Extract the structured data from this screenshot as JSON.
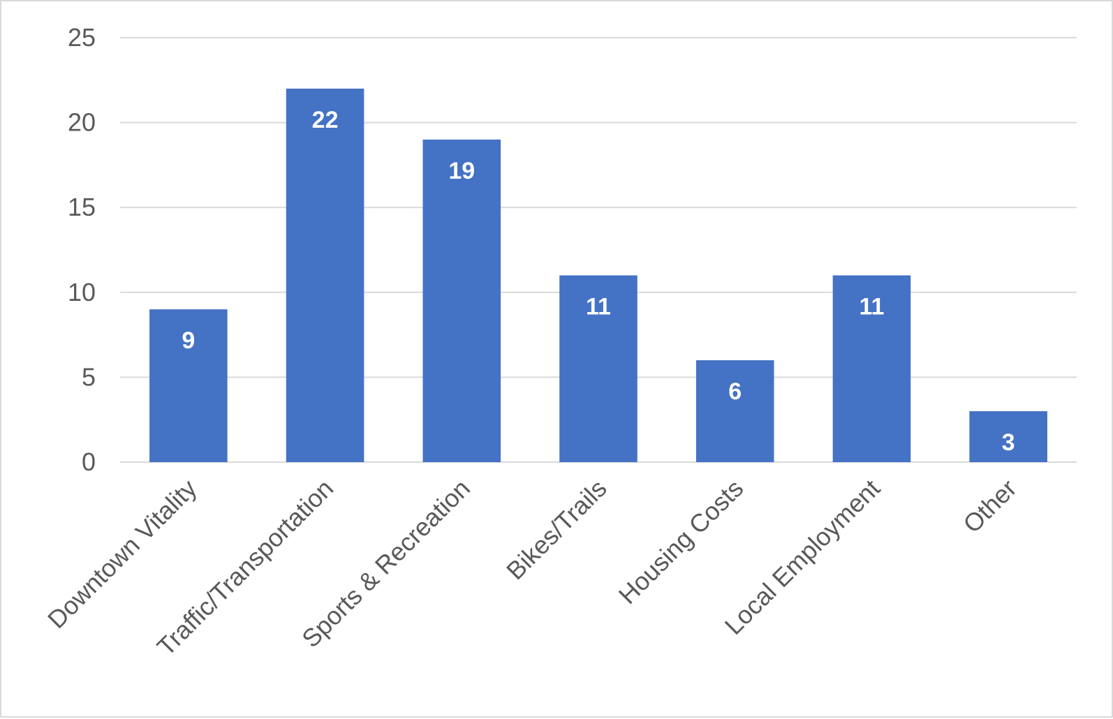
{
  "chart_data": {
    "type": "bar",
    "title": "",
    "xlabel": "",
    "ylabel": "",
    "categories": [
      "Downtown Vitality",
      "Traffic/Transportation",
      "Sports & Recreation",
      "Bikes/Trails",
      "Housing Costs",
      "Local Employment",
      "Other"
    ],
    "values": [
      9,
      22,
      19,
      11,
      6,
      11,
      3
    ],
    "ylim": [
      0,
      25
    ],
    "yticks": [
      0,
      5,
      10,
      15,
      20,
      25
    ],
    "grid": true,
    "legend": "none",
    "data_labels": "inside-top",
    "colors": {
      "bar": "#4472c4",
      "grid": "#d9d9d9",
      "text": "#595959",
      "data_label": "#ffffff"
    }
  }
}
